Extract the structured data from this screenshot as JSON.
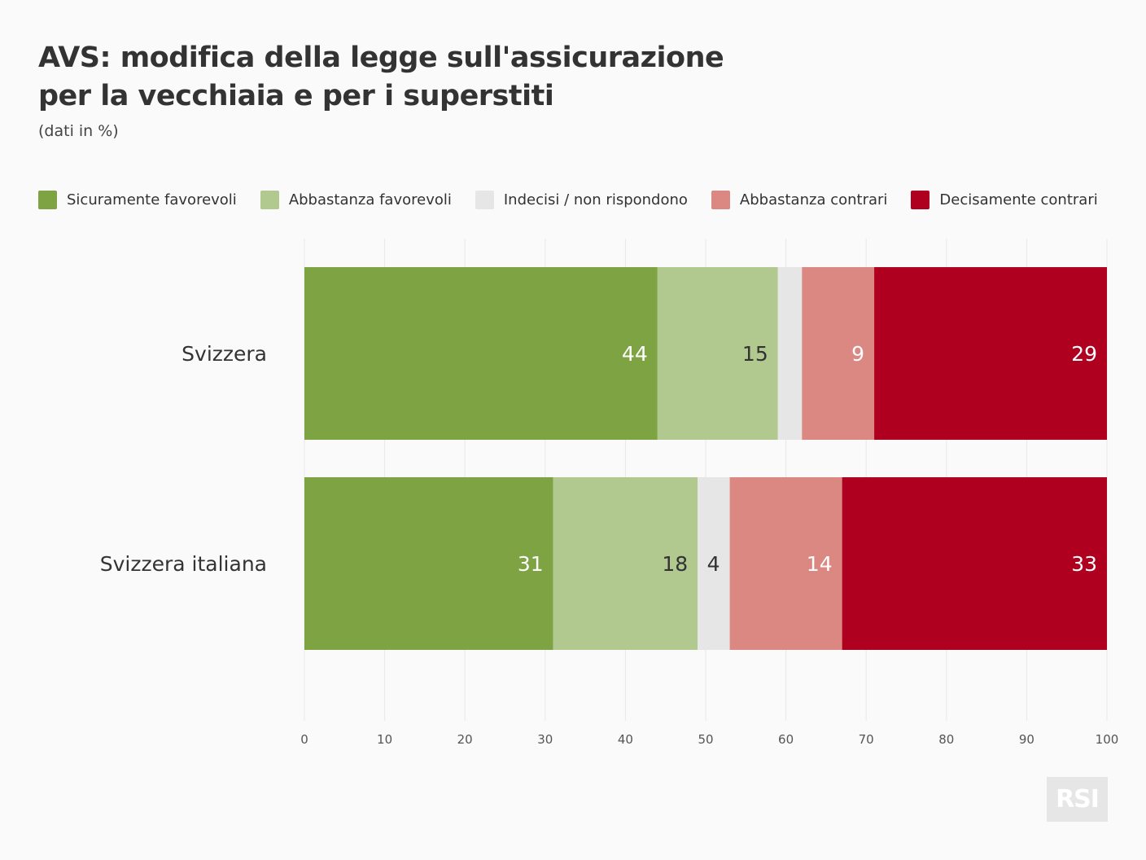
{
  "title_line1": "AVS: modifica della legge sull'assicurazione",
  "title_line2": "per la vecchiaia e per i superstiti",
  "subtitle": "(dati in %)",
  "logo": "RSI",
  "chart_data": {
    "type": "bar",
    "orientation": "horizontal-stacked",
    "title": "AVS: modifica della legge sull'assicurazione per la vecchiaia e per i superstiti",
    "subtitle": "(dati in %)",
    "categories": [
      "Svizzera",
      "Svizzera italiana"
    ],
    "series": [
      {
        "name": "Sicuramente favorevoli",
        "color": "#7ea343",
        "label_color": "#ffffff",
        "values": [
          44,
          31
        ]
      },
      {
        "name": "Abbastanza favorevoli",
        "color": "#b1c98f",
        "label_color": "#333333",
        "values": [
          15,
          18
        ]
      },
      {
        "name": "Indecisi / non rispondono",
        "color": "#e6e6e6",
        "label_color": "#333333",
        "values": [
          3,
          4
        ]
      },
      {
        "name": "Abbastanza contrari",
        "color": "#db8883",
        "label_color": "#ffffff",
        "values": [
          9,
          14
        ]
      },
      {
        "name": "Decisamente contrari",
        "color": "#b0001f",
        "label_color": "#ffffff",
        "values": [
          29,
          33
        ]
      }
    ],
    "xlim": [
      0,
      100
    ],
    "xticks": [
      0,
      10,
      20,
      30,
      40,
      50,
      60,
      70,
      80,
      90,
      100
    ],
    "grid": true,
    "legend_position": "top"
  }
}
